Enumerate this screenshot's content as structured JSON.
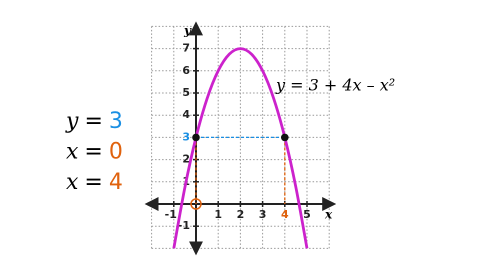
{
  "chart_data": {
    "type": "line",
    "equation": "y = 3 + 4x – x²",
    "xlabel": "x",
    "ylabel": "y",
    "x": [
      -1,
      -0.5,
      0,
      0.5,
      1,
      1.5,
      2,
      2.5,
      3,
      3.5,
      4,
      4.5,
      5
    ],
    "series": [
      {
        "color": "#cc22cc",
        "values": [
          -2,
          0.75,
          3,
          4.75,
          6,
          6.75,
          7,
          6.75,
          6,
          4.75,
          3,
          0.75,
          -2
        ]
      }
    ],
    "points": [
      {
        "x": 0,
        "y": 3
      },
      {
        "x": 4,
        "y": 3
      }
    ],
    "guide_colors": {
      "y": "#1a8fe3",
      "x": "#e0620d"
    },
    "xlim": [
      -2,
      6
    ],
    "ylim": [
      -2,
      8
    ],
    "xticks": [
      -1,
      1,
      2,
      3,
      4,
      5
    ],
    "yticks": [
      -1,
      1,
      2,
      3,
      4,
      5,
      6,
      7
    ],
    "grid": true,
    "equations": [
      {
        "variable": "y",
        "sign": "=",
        "value": 3
      },
      {
        "variable": "x",
        "sign": "=",
        "value": 0
      },
      {
        "variable": "x",
        "sign": "=",
        "value": 4
      }
    ]
  }
}
